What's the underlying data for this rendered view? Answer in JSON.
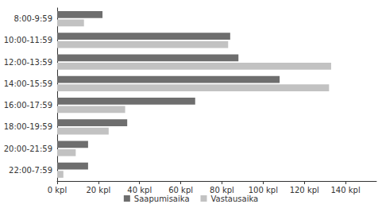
{
  "chart_data": {
    "type": "bar",
    "orientation": "horizontal",
    "categories": [
      "8:00-9:59",
      "10:00-11:59",
      "12:00-13:59",
      "14:00-15:59",
      "16:00-17:59",
      "18:00-19:59",
      "20:00-21:59",
      "22:00-7:59"
    ],
    "series": [
      {
        "name": "Saapumisaika",
        "color": "#6e6e6e",
        "values": [
          22,
          84,
          88,
          108,
          67,
          34,
          15,
          15
        ]
      },
      {
        "name": "Vastausaika",
        "color": "#c2c2c2",
        "values": [
          13,
          83,
          133,
          132,
          33,
          25,
          9,
          3
        ]
      }
    ],
    "xlim": [
      0,
      155
    ],
    "xticks": [
      {
        "value": 0,
        "label": "0 kpl"
      },
      {
        "value": 20,
        "label": "20 kpl"
      },
      {
        "value": 40,
        "label": "40 kpl"
      },
      {
        "value": 60,
        "label": "60 kpl"
      },
      {
        "value": 80,
        "label": "80 kpl"
      },
      {
        "value": 100,
        "label": "100 kpl"
      },
      {
        "value": 120,
        "label": "120 kpl"
      },
      {
        "value": 140,
        "label": "140 kpl"
      }
    ],
    "grid": false,
    "legend": "bottom"
  }
}
